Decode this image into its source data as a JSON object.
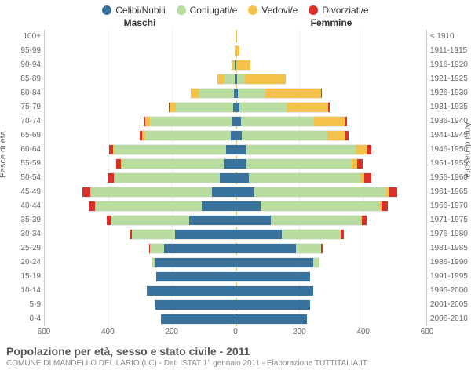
{
  "legend": [
    {
      "label": "Celibi/Nubili",
      "color": "#39739d"
    },
    {
      "label": "Coniugati/e",
      "color": "#b9dca0"
    },
    {
      "label": "Vedovi/e",
      "color": "#f4c24b"
    },
    {
      "label": "Divorziati/e",
      "color": "#d8302a"
    }
  ],
  "header_left": "Maschi",
  "header_right": "Femmine",
  "ylabel_left": "Fasce di età",
  "ylabel_right": "Anni di nascita",
  "title": "Popolazione per età, sesso e stato civile - 2011",
  "subtitle": "COMUNE DI MANDELLO DEL LARIO (LC) - Dati ISTAT 1° gennaio 2011 - Elaborazione TUTTITALIA.IT",
  "xlim": 600,
  "xticks": [
    600,
    400,
    200,
    0,
    200,
    400,
    600
  ],
  "plot_bg": "#ffffff",
  "grid_color": "#eeeeee",
  "center_color": "#e0d080",
  "age_groups": [
    {
      "age": "100+",
      "birth": "≤ 1910",
      "m": [
        0,
        0,
        1,
        0
      ],
      "f": [
        0,
        0,
        5,
        0
      ]
    },
    {
      "age": "95-99",
      "birth": "1911-1915",
      "m": [
        0,
        0,
        2,
        0
      ],
      "f": [
        0,
        0,
        12,
        0
      ]
    },
    {
      "age": "90-94",
      "birth": "1916-1920",
      "m": [
        2,
        2,
        8,
        0
      ],
      "f": [
        1,
        2,
        45,
        0
      ]
    },
    {
      "age": "85-89",
      "birth": "1921-1925",
      "m": [
        3,
        35,
        20,
        0
      ],
      "f": [
        4,
        25,
        130,
        0
      ]
    },
    {
      "age": "80-84",
      "birth": "1926-1930",
      "m": [
        5,
        110,
        25,
        2
      ],
      "f": [
        8,
        85,
        175,
        2
      ]
    },
    {
      "age": "75-79",
      "birth": "1931-1935",
      "m": [
        7,
        180,
        20,
        3
      ],
      "f": [
        12,
        150,
        130,
        5
      ]
    },
    {
      "age": "70-74",
      "birth": "1936-1940",
      "m": [
        10,
        260,
        15,
        5
      ],
      "f": [
        18,
        230,
        95,
        8
      ]
    },
    {
      "age": "65-69",
      "birth": "1941-1945",
      "m": [
        15,
        270,
        8,
        8
      ],
      "f": [
        20,
        270,
        55,
        10
      ]
    },
    {
      "age": "60-64",
      "birth": "1946-1950",
      "m": [
        30,
        350,
        5,
        12
      ],
      "f": [
        32,
        345,
        35,
        15
      ]
    },
    {
      "age": "55-59",
      "birth": "1951-1955",
      "m": [
        38,
        320,
        3,
        15
      ],
      "f": [
        35,
        330,
        18,
        18
      ]
    },
    {
      "age": "50-54",
      "birth": "1956-1960",
      "m": [
        50,
        330,
        3,
        20
      ],
      "f": [
        42,
        350,
        12,
        22
      ]
    },
    {
      "age": "45-49",
      "birth": "1961-1965",
      "m": [
        75,
        380,
        2,
        25
      ],
      "f": [
        60,
        415,
        8,
        25
      ]
    },
    {
      "age": "40-44",
      "birth": "1966-1970",
      "m": [
        105,
        335,
        1,
        20
      ],
      "f": [
        80,
        375,
        4,
        20
      ]
    },
    {
      "age": "35-39",
      "birth": "1971-1975",
      "m": [
        145,
        245,
        0,
        15
      ],
      "f": [
        110,
        285,
        2,
        15
      ]
    },
    {
      "age": "30-34",
      "birth": "1976-1980",
      "m": [
        190,
        135,
        0,
        8
      ],
      "f": [
        145,
        185,
        1,
        10
      ]
    },
    {
      "age": "25-29",
      "birth": "1981-1985",
      "m": [
        225,
        45,
        0,
        2
      ],
      "f": [
        190,
        80,
        0,
        3
      ]
    },
    {
      "age": "20-24",
      "birth": "1986-1990",
      "m": [
        255,
        8,
        0,
        0
      ],
      "f": [
        245,
        20,
        0,
        0
      ]
    },
    {
      "age": "15-19",
      "birth": "1991-1995",
      "m": [
        250,
        0,
        0,
        0
      ],
      "f": [
        235,
        0,
        0,
        0
      ]
    },
    {
      "age": "10-14",
      "birth": "1996-2000",
      "m": [
        280,
        0,
        0,
        0
      ],
      "f": [
        245,
        0,
        0,
        0
      ]
    },
    {
      "age": "5-9",
      "birth": "2001-2005",
      "m": [
        255,
        0,
        0,
        0
      ],
      "f": [
        235,
        0,
        0,
        0
      ]
    },
    {
      "age": "0-4",
      "birth": "2006-2010",
      "m": [
        235,
        0,
        0,
        0
      ],
      "f": [
        225,
        0,
        0,
        0
      ]
    }
  ]
}
